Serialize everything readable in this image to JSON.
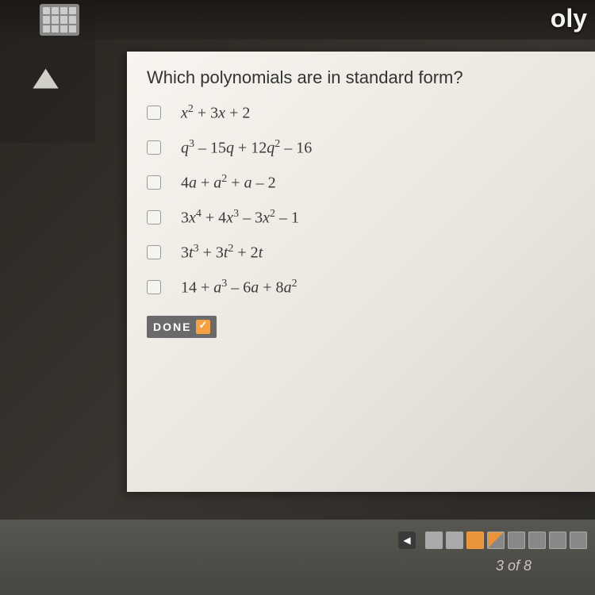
{
  "topbar": {
    "partial_text": "oly"
  },
  "question": "Which polynomials are in standard form?",
  "options": [
    {
      "html": "<span class='var'>x</span><sup>2</sup> <span class='num'>+ 3</span><span class='var'>x</span> <span class='num'>+ 2</span>"
    },
    {
      "html": "<span class='var'>q</span><sup>3</sup> <span class='num'>– 15</span><span class='var'>q</span> <span class='num'>+ 12</span><span class='var'>q</span><sup>2</sup> <span class='num'>– 16</span>"
    },
    {
      "html": "<span class='num'>4</span><span class='var'>a</span> <span class='num'>+</span> <span class='var'>a</span><sup>2</sup> <span class='num'>+</span> <span class='var'>a</span> <span class='num'>– 2</span>"
    },
    {
      "html": "<span class='num'>3</span><span class='var'>x</span><sup>4</sup> <span class='num'>+ 4</span><span class='var'>x</span><sup>3</sup> <span class='num'>– 3</span><span class='var'>x</span><sup>2</sup> <span class='num'>– 1</span>"
    },
    {
      "html": "<span class='num'>3</span><span class='var'>t</span><sup>3</sup> <span class='num'>+ 3</span><span class='var'>t</span><sup>2</sup> <span class='num'>+ 2</span><span class='var'>t</span>"
    },
    {
      "html": "<span class='num'>14 +</span> <span class='var'>a</span><sup>3</sup> <span class='num'>– 6</span><span class='var'>a</span> <span class='num'>+ 8</span><span class='var'>a</span><sup>2</sup>"
    }
  ],
  "done_label": "DONE",
  "pagination": {
    "counter": "3 of 8",
    "total": 8,
    "current": 3,
    "box_states": [
      "filled",
      "filled",
      "current",
      "partial",
      "empty",
      "empty",
      "empty",
      "empty"
    ]
  },
  "colors": {
    "panel_bg": "#f0ede6",
    "accent": "#e8943a",
    "done_bg": "#6a6a6a",
    "bottom_bar": "#505048"
  }
}
